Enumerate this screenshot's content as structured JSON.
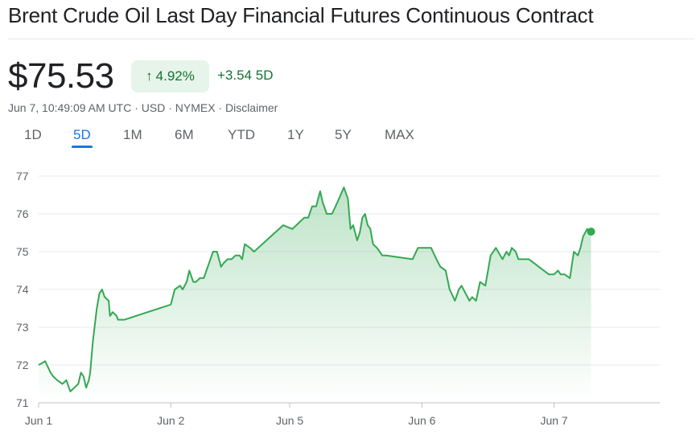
{
  "header": {
    "title": "Brent Crude Oil Last Day Financial Futures Continuous Contract"
  },
  "quote": {
    "price": "$75.53",
    "percent_change": "4.92%",
    "absolute_change": "+3.54 5D",
    "meta": "Jun 7, 10:49:09 AM UTC · USD · NYMEX · Disclaimer"
  },
  "range_tabs": [
    {
      "label": "1D",
      "active": false
    },
    {
      "label": "5D",
      "active": true
    },
    {
      "label": "1M",
      "active": false
    },
    {
      "label": "6M",
      "active": false
    },
    {
      "label": "YTD",
      "active": false
    },
    {
      "label": "1Y",
      "active": false
    },
    {
      "label": "5Y",
      "active": false
    },
    {
      "label": "MAX",
      "active": false
    }
  ],
  "colors": {
    "accent": "#1a73e8",
    "positive": "#137333",
    "line": "#34a853",
    "chip_bg": "#e6f4ea"
  },
  "chart_data": {
    "type": "area",
    "ylim": [
      71,
      77
    ],
    "yticks": [
      71,
      72,
      73,
      74,
      75,
      76,
      77
    ],
    "xticks": [
      {
        "label": "Jun 1",
        "x": 0
      },
      {
        "label": "Jun 2",
        "x": 10
      },
      {
        "label": "Jun 5",
        "x": 19
      },
      {
        "label": "Jun 6",
        "x": 29
      },
      {
        "label": "Jun 7",
        "x": 39
      }
    ],
    "xlim": [
      0,
      47
    ],
    "grid": true,
    "series": [
      {
        "x": [
          0,
          0.5,
          0.9,
          1.1,
          1.4,
          1.8,
          2.1,
          2.4,
          2.7,
          3.0,
          3.2,
          3.4,
          3.6,
          3.8,
          3.9,
          4.1,
          4.4,
          4.6,
          4.8,
          5.0,
          5.3,
          5.4,
          5.6,
          5.9,
          6.0,
          6.5,
          10.0,
          10.3,
          10.7,
          10.9,
          11.2,
          11.4,
          11.7,
          11.9,
          12.2,
          12.5,
          12.8,
          13.0,
          13.2,
          13.5,
          13.8,
          14.0,
          14.3,
          14.6,
          14.9,
          15.2,
          15.4,
          15.6,
          16.0,
          16.3,
          18.5,
          19.2,
          19.8,
          20.1,
          20.4,
          20.7,
          21.0,
          21.3,
          21.5,
          21.8,
          22.2,
          22.6,
          23.1,
          23.4,
          23.6,
          23.8,
          24.1,
          24.3,
          24.5,
          24.7,
          24.9,
          25.1,
          25.3,
          25.6,
          26.0,
          26.3,
          28.3,
          28.7,
          29.0,
          29.7,
          30.1,
          30.4,
          30.8,
          31.1,
          31.5,
          31.8,
          32.0,
          32.3,
          32.6,
          32.8,
          33.1,
          33.4,
          33.8,
          34.2,
          34.6,
          35.1,
          35.4,
          35.6,
          35.8,
          36.1,
          36.3,
          36.7,
          37.1,
          38.6,
          39.0,
          39.3,
          39.5,
          39.8,
          40.2,
          40.5,
          40.8,
          41.0,
          41.2,
          41.5,
          41.8
        ],
        "y": [
          72.0,
          72.1,
          71.8,
          71.7,
          71.6,
          71.5,
          71.6,
          71.3,
          71.4,
          71.5,
          71.8,
          71.7,
          71.4,
          71.6,
          71.8,
          72.6,
          73.5,
          73.9,
          74.0,
          73.8,
          73.7,
          73.3,
          73.4,
          73.3,
          73.2,
          73.2,
          73.6,
          74.0,
          74.1,
          74.0,
          74.2,
          74.5,
          74.2,
          74.2,
          74.3,
          74.3,
          74.6,
          74.8,
          75.0,
          75.0,
          74.6,
          74.7,
          74.8,
          74.8,
          74.9,
          74.9,
          74.8,
          75.2,
          75.1,
          75.0,
          75.7,
          75.6,
          75.8,
          75.9,
          75.9,
          76.2,
          76.2,
          76.6,
          76.3,
          76.0,
          76.0,
          76.3,
          76.7,
          76.4,
          75.6,
          75.7,
          75.3,
          75.5,
          75.9,
          76.0,
          75.7,
          75.6,
          75.2,
          75.1,
          74.9,
          74.9,
          74.8,
          75.1,
          75.1,
          75.1,
          74.8,
          74.6,
          74.5,
          74.0,
          73.7,
          74.0,
          74.1,
          73.9,
          73.7,
          73.8,
          73.7,
          74.2,
          74.1,
          74.9,
          75.1,
          74.8,
          75.0,
          74.9,
          75.1,
          75.0,
          74.8,
          74.8,
          74.8,
          74.4,
          74.4,
          74.5,
          74.4,
          74.4,
          74.3,
          75.0,
          74.9,
          75.1,
          75.4,
          75.6,
          75.53
        ]
      }
    ],
    "last_point": {
      "x": 41.8,
      "y": 75.53
    }
  }
}
